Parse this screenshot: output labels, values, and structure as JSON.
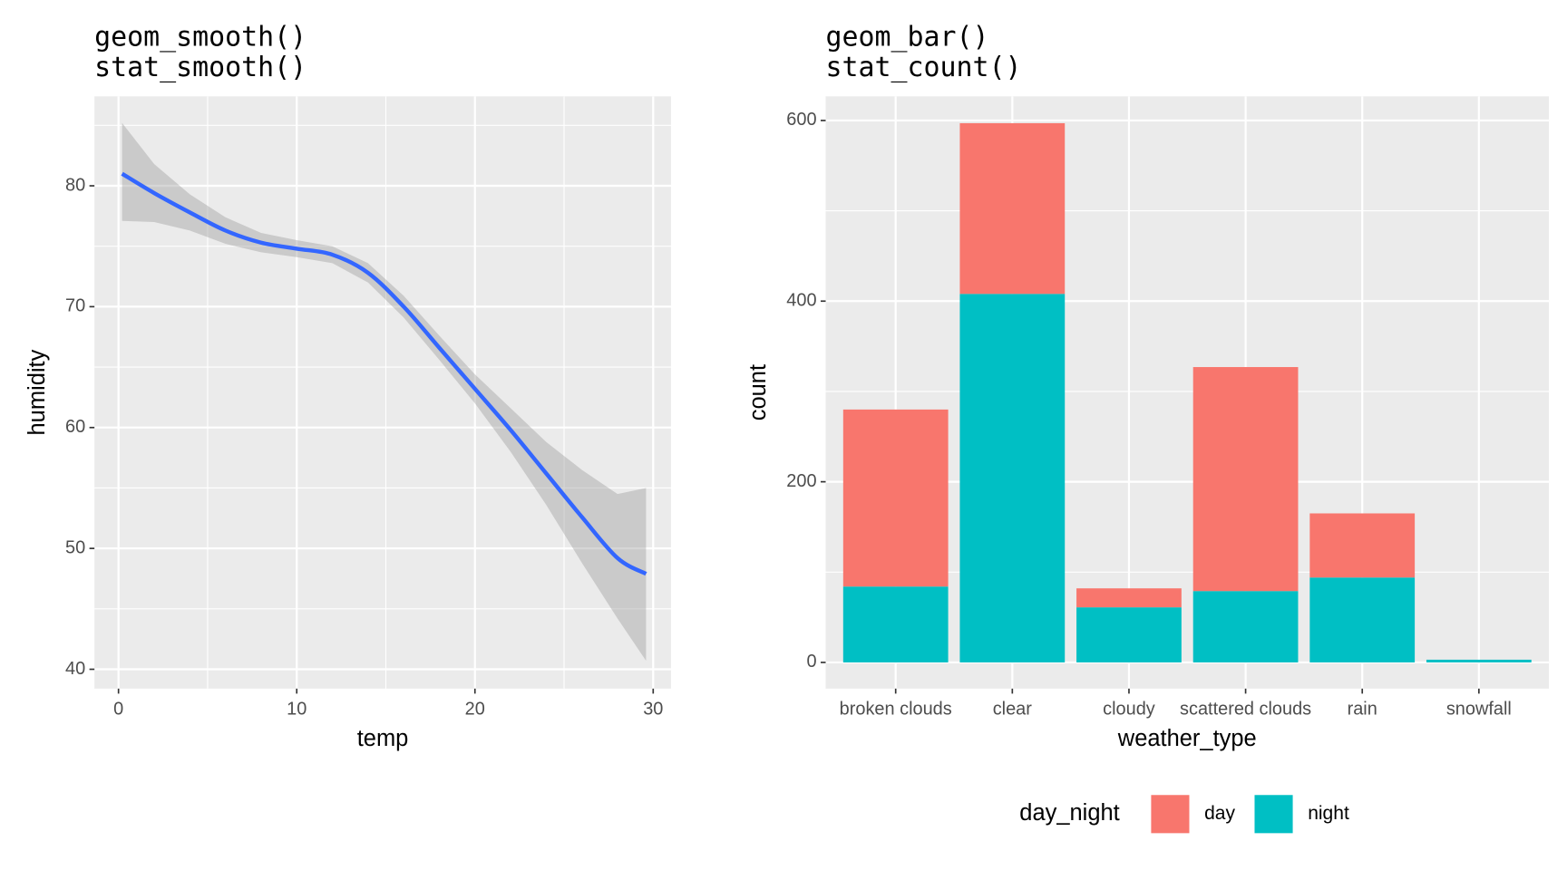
{
  "chart_data": [
    {
      "type": "line",
      "title": [
        "geom_smooth()",
        "stat_smooth()"
      ],
      "xlabel": "temp",
      "ylabel": "humidity",
      "x": [
        0.2,
        2,
        4,
        6,
        8,
        10,
        12,
        14,
        16,
        18,
        20,
        22,
        24,
        26,
        28,
        29.6
      ],
      "series": [
        {
          "color": "#3366FF",
          "band_color": "#999999",
          "values": [
            81.0,
            79.4,
            77.8,
            76.3,
            75.3,
            74.8,
            74.3,
            72.8,
            70.0,
            66.6,
            63.2,
            59.8,
            56.2,
            52.6,
            49.2,
            47.9
          ],
          "lower": [
            77.1,
            77.0,
            76.3,
            75.2,
            74.5,
            74.1,
            73.6,
            72.0,
            69.1,
            65.6,
            62.0,
            58.0,
            53.6,
            48.8,
            44.2,
            40.7
          ],
          "upper": [
            85.2,
            81.8,
            79.3,
            77.4,
            76.1,
            75.5,
            75.0,
            73.6,
            70.9,
            67.6,
            64.4,
            61.6,
            58.8,
            56.5,
            54.5,
            55.0
          ]
        }
      ],
      "xlim": [
        -1.35,
        31.0
      ],
      "xticks": [
        0,
        10,
        20,
        30
      ],
      "x_minor_ticks": [
        5,
        15,
        25
      ],
      "ylim": [
        38.4,
        87.4
      ],
      "yticks": [
        40,
        50,
        60,
        70,
        80
      ],
      "y_minor_ticks": [
        45,
        55,
        65,
        75,
        85
      ],
      "grid": true
    },
    {
      "type": "stacked_bar",
      "title": [
        "geom_bar()",
        "stat_count()"
      ],
      "xlabel": "weather_type",
      "ylabel": "count",
      "categories": [
        "broken clouds",
        "clear",
        "cloudy",
        "scattered clouds",
        "rain",
        "snowfall"
      ],
      "series": [
        {
          "name": "day",
          "color": "#F8766D",
          "values": [
            196,
            189,
            21,
            248,
            71,
            0
          ]
        },
        {
          "name": "night",
          "color": "#00BFC4",
          "values": [
            84,
            408,
            61,
            79,
            94,
            3
          ]
        }
      ],
      "stack_order": "reverse",
      "ylim": [
        -29,
        626.7
      ],
      "yticks": [
        0,
        200,
        400,
        600
      ],
      "y_minor_ticks": [
        100,
        300,
        500
      ],
      "grid": true,
      "legend_title": "day_night",
      "legend_position": "bottom"
    }
  ]
}
